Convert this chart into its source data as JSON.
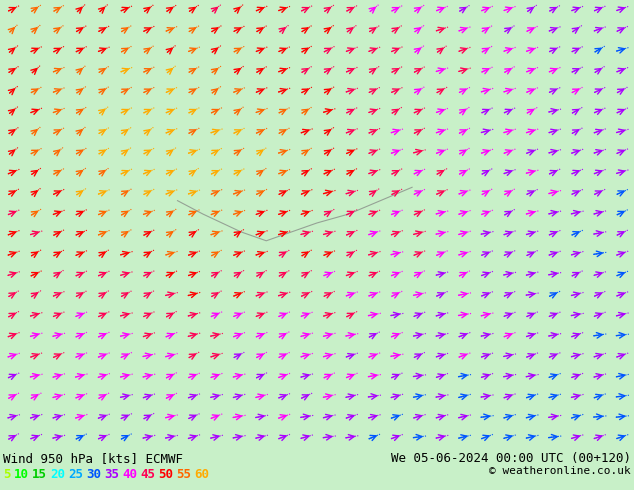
{
  "title_left": "Wind 950 hPa [kts] ECMWF",
  "title_right": "We 05-06-2024 00:00 UTC (00+120)",
  "copyright": "© weatheronline.co.uk",
  "legend_values": [
    5,
    10,
    15,
    20,
    25,
    30,
    35,
    40,
    45,
    50,
    55,
    60
  ],
  "legend_colors": [
    "#aaff00",
    "#00ff00",
    "#00cc00",
    "#00ffff",
    "#00aaff",
    "#0055ff",
    "#aa00ff",
    "#ff00ff",
    "#ff0055",
    "#ff0000",
    "#ff6600",
    "#ffaa00"
  ],
  "bg_color": "#c8f0c8",
  "fig_width": 6.34,
  "fig_height": 4.9,
  "dpi": 100,
  "bottom_bar_color": "#c8f0a0",
  "text_color": "#000000",
  "font_size_title": 9,
  "font_size_legend": 9
}
